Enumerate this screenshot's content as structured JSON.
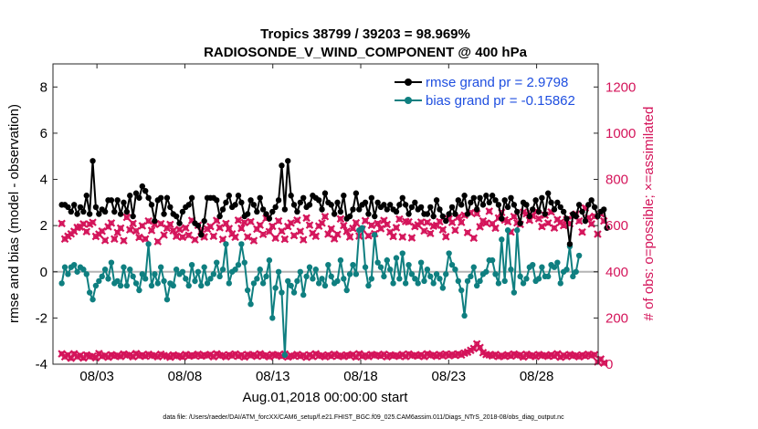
{
  "chart_data": {
    "type": "line",
    "title": "Tropics 38799 / 39203 = 98.969%",
    "subtitle": "RADIOSONDE_V_WIND_COMPONENT @ 400 hPa",
    "xlabel": "Aug.01,2018 00:00:00 start",
    "ylabel_left": "rmse and bias (model - observation)",
    "ylabel_right": "# of obs: o=possible; ×=assimilated",
    "xlim": [
      0.5,
      31.5
    ],
    "ylim_left": [
      -4,
      9
    ],
    "ylim_right": [
      0,
      1300
    ],
    "x_ticks": [
      {
        "x": 3,
        "label": "08/03"
      },
      {
        "x": 8,
        "label": "08/08"
      },
      {
        "x": 13,
        "label": "08/13"
      },
      {
        "x": 18,
        "label": "08/18"
      },
      {
        "x": 23,
        "label": "08/23"
      },
      {
        "x": 28,
        "label": "08/28"
      }
    ],
    "y_ticks_left": [
      -4,
      -2,
      0,
      2,
      4,
      6,
      8
    ],
    "y_ticks_right": [
      0,
      200,
      400,
      600,
      800,
      1000,
      1200
    ],
    "reference_line": 0,
    "colors": {
      "rmse": "#000000",
      "bias": "#0f7f80",
      "obs": "#d4145a",
      "zero": "#b4b4b4",
      "legend_text": "#1f4fe0"
    },
    "series": [
      {
        "name": "rmse grand pr = 2.9798",
        "axis": "left",
        "color": "#000000",
        "values": [
          2.9,
          2.9,
          2.8,
          2.6,
          2.9,
          2.5,
          2.8,
          2.6,
          3.3,
          2.5,
          4.8,
          2.8,
          2.5,
          2.7,
          2.6,
          3.1,
          3.1,
          2.6,
          3.1,
          2.5,
          3.0,
          2.6,
          3.3,
          2.4,
          3.4,
          3.2,
          3.7,
          3.5,
          3.2,
          2.9,
          2.2,
          3.1,
          3.2,
          2.5,
          3.2,
          2.8,
          2.5,
          2.4,
          2.1,
          2.6,
          2.8,
          2.9,
          3.2,
          2.1,
          2.0,
          1.6,
          2.2,
          3.2,
          3.2,
          3.2,
          3.1,
          2.4,
          2.7,
          3.0,
          3.3,
          2.8,
          2.9,
          3.3,
          3.0,
          2.4,
          2.5,
          3.1,
          2.9,
          2.6,
          3.2,
          2.7,
          2.5,
          2.3,
          2.6,
          2.8,
          3.1,
          4.6,
          2.7,
          4.8,
          3.3,
          2.9,
          2.6,
          3.0,
          3.2,
          2.8,
          2.9,
          3.3,
          3.2,
          3.1,
          2.7,
          3.4,
          3.0,
          2.9,
          2.5,
          3.0,
          2.6,
          3.3,
          2.3,
          2.4,
          2.7,
          3.4,
          2.7,
          2.9,
          3.0,
          2.5,
          3.2,
          2.4,
          3.0,
          2.8,
          2.9,
          2.7,
          2.9,
          2.7,
          2.6,
          2.9,
          3.2,
          2.9,
          2.5,
          2.8,
          3.0,
          2.7,
          2.8,
          2.5,
          2.5,
          2.8,
          2.4,
          3.1,
          2.7,
          2.4,
          2.2,
          2.5,
          2.8,
          2.5,
          3.1,
          2.9,
          3.3,
          2.5,
          3.0,
          3.2,
          2.7,
          3.2,
          2.9,
          3.3,
          3.0,
          3.3,
          3.1,
          2.9,
          2.3,
          3.1,
          2.8,
          3.2,
          2.9,
          2.6,
          2.1,
          3.0,
          2.9,
          2.4,
          2.7,
          3.1,
          2.6,
          3.2,
          2.5,
          3.4,
          3.0,
          2.7,
          3.0,
          2.8,
          2.6,
          2.3,
          1.2,
          2.5,
          2.4,
          2.9,
          2.6,
          2.2,
          2.9,
          3.1,
          2.8,
          2.4,
          2.6,
          2.7,
          1.9
        ]
      },
      {
        "name": "bias grand pr = -0.15862",
        "axis": "left",
        "color": "#0f7f80",
        "values": [
          -0.5,
          0.2,
          -0.1,
          0.2,
          0.3,
          0.0,
          0.2,
          0.1,
          -0.1,
          -0.9,
          -1.2,
          -0.6,
          -0.4,
          -0.2,
          0.1,
          -0.3,
          0.4,
          -0.5,
          -0.4,
          -0.6,
          0.2,
          -0.6,
          0.1,
          -0.2,
          -0.5,
          -0.8,
          -0.1,
          -0.3,
          1.2,
          -0.6,
          -0.1,
          -0.5,
          0.2,
          -0.4,
          -1.2,
          -0.5,
          -0.6,
          0.1,
          -0.1,
          0.0,
          -0.3,
          -0.6,
          0.3,
          -0.4,
          0.0,
          -0.6,
          0.2,
          -0.5,
          -0.3,
          -0.1,
          0.4,
          -0.2,
          0.1,
          1.2,
          -0.5,
          0.0,
          0.1,
          0.3,
          1.2,
          0.4,
          -0.8,
          -1.4,
          -0.5,
          -0.3,
          0.1,
          -0.5,
          -0.2,
          0.5,
          -2.0,
          -0.7,
          0.0,
          -0.9,
          -3.6,
          -0.4,
          -0.6,
          -0.9,
          -0.4,
          0.0,
          -1.0,
          -0.2,
          0.2,
          -0.3,
          0.1,
          -0.5,
          -0.3,
          -0.6,
          0.3,
          -0.2,
          -0.5,
          -0.4,
          0.5,
          -0.3,
          -0.8,
          -0.1,
          0.3,
          -0.1,
          1.8,
          1.9,
          0.2,
          -0.6,
          -0.3,
          1.6,
          0.4,
          0.2,
          -0.2,
          0.5,
          0.1,
          -0.5,
          0.6,
          -0.3,
          0.8,
          -0.5,
          0.3,
          -0.1,
          -0.3,
          -0.5,
          0.4,
          -0.4,
          0.1,
          -0.2,
          -0.5,
          -0.1,
          -0.3,
          -0.7,
          -0.1,
          0.8,
          0.3,
          0.1,
          -0.4,
          -0.8,
          -1.9,
          -0.4,
          -0.2,
          0.2,
          -0.6,
          -0.4,
          -0.1,
          0.0,
          0.5,
          0.5,
          -0.1,
          -0.5,
          1.4,
          -0.4,
          1.8,
          0.1,
          -0.9,
          1.8,
          -0.2,
          -0.5,
          -0.3,
          0.2,
          0.3,
          -0.4,
          -0.3,
          0.2,
          -0.2,
          -0.2,
          0.3,
          0.2,
          0.4,
          -0.5,
          0.0,
          0.1,
          1.1,
          -0.2,
          0.0,
          0.7
        ]
      },
      {
        "name": "# of obs",
        "axis": "right",
        "color": "#d4145a",
        "markers": "o=possible; ×=assimilated",
        "values": [
          609,
          542,
          554,
          564,
          575,
          592,
          594,
          607,
          574,
          606,
          614,
          553,
          563,
          576,
          536,
          595,
          611,
          542,
          570,
          589,
          535,
          636,
          582,
          609,
          577,
          549,
          599,
          542,
          620,
          579,
          605,
          531,
          608,
          559,
          589,
          605,
          578,
          554,
          583,
          550,
          590,
          558,
          622,
          539,
          601,
          575,
          551,
          585,
          596,
          554,
          622,
          591,
          540,
          609,
          587,
          564,
          550,
          623,
          588,
          613,
          551,
          617,
          535,
          585,
          602,
          562,
          632,
          574,
          597,
          546,
          620,
          576,
          541,
          596,
          611,
          557,
          623,
          575,
          539,
          633,
          602,
          567,
          554,
          598,
          611,
          639,
          563,
          586,
          543,
          562,
          629,
          600,
          575,
          551,
          588,
          612,
          555,
          584,
          621,
          556,
          601,
          565,
          609,
          587,
          622,
          605,
          572,
          553,
          591,
          628,
          551,
          618,
          616,
          547,
          596,
          603,
          615,
          577,
          614,
          566,
          598,
          601,
          617,
          582,
          552,
          629,
          614,
          580,
          637,
          614,
          645,
          570,
          656,
          546,
          652,
          595,
          620,
          611,
          662,
          608,
          589,
          633,
          657,
          624,
          617,
          572,
          639,
          612,
          605,
          658,
          651,
          623,
          642,
          661,
          630,
          596,
          645,
          611,
          659,
          590,
          626,
          614,
          600,
          626,
          608,
          642,
          650,
          620,
          572,
          676,
          634,
          607,
          640,
          563,
          651,
          620
        ],
        "low_values": [
          45,
          32,
          40,
          26,
          45,
          32,
          38,
          27,
          40,
          33,
          35,
          28,
          46,
          34,
          38,
          30,
          41,
          35,
          38,
          33,
          44,
          38,
          40,
          32,
          46,
          36,
          40,
          34,
          43,
          37,
          38,
          32,
          43,
          37,
          35,
          30,
          40,
          35,
          37,
          31,
          42,
          35,
          39,
          36,
          43,
          35,
          40,
          37,
          42,
          32,
          45,
          37,
          39,
          32,
          41,
          36,
          44,
          34,
          40,
          31,
          42,
          37,
          41,
          34,
          45,
          36,
          39,
          32,
          42,
          38,
          40,
          34,
          44,
          31,
          37,
          35,
          42,
          34,
          39,
          30,
          41,
          33,
          45,
          36,
          38,
          32,
          40,
          34,
          43,
          35,
          38,
          33,
          40,
          36,
          42,
          31,
          45,
          34,
          39,
          33,
          42,
          38,
          40,
          35,
          43,
          32,
          40,
          36,
          38,
          34,
          42,
          33,
          44,
          37,
          39,
          35,
          41,
          33,
          45,
          38,
          40,
          34,
          42,
          36,
          44,
          37,
          43,
          38,
          45,
          40,
          48,
          52,
          60,
          68,
          88,
          72,
          50,
          42,
          40,
          36,
          42,
          33,
          38,
          34,
          41,
          35,
          44,
          38,
          40,
          31,
          43,
          36,
          39,
          33,
          42,
          37,
          38,
          34,
          41,
          35,
          45,
          30,
          39,
          33,
          42,
          36,
          38,
          32,
          40,
          35,
          43,
          37,
          41,
          10,
          22,
          5
        ]
      }
    ],
    "legend": [
      {
        "name": "rmse grand pr = 2.9798",
        "color": "#000000"
      },
      {
        "name": "bias grand pr = -0.15862",
        "color": "#0f7f80"
      }
    ],
    "footnote": "data file: /Users/raeder/DAI/ATM_forcXX/CAM6_setup/f.e21.FHIST_BGC.f09_025.CAM6assim.011/Diags_NTrS_2018-08/obs_diag_output.nc"
  }
}
